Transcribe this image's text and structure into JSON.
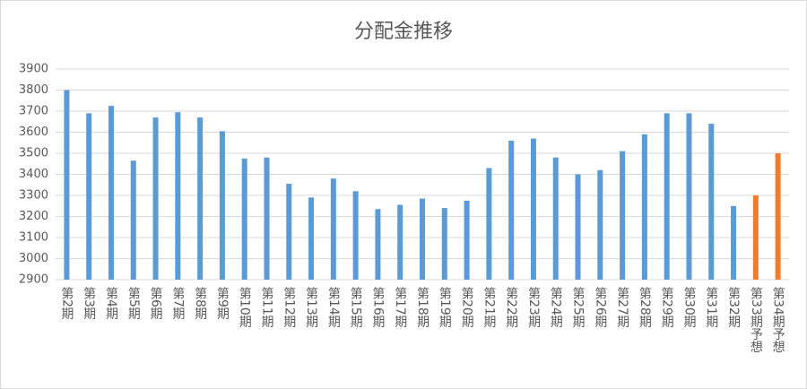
{
  "chart_data": {
    "type": "bar",
    "title": "分配金推移",
    "categories": [
      "第2期",
      "第3期",
      "第4期",
      "第5期",
      "第6期",
      "第7期",
      "第8期",
      "第9期",
      "第10期",
      "第11期",
      "第12期",
      "第13期",
      "第14期",
      "第15期",
      "第16期",
      "第17期",
      "第18期",
      "第19期",
      "第20期",
      "第21期",
      "第22期",
      "第23期",
      "第24期",
      "第25期",
      "第26期",
      "第27期",
      "第28期",
      "第29期",
      "第30期",
      "第31期",
      "第32期",
      "第33期予想",
      "第34期予想"
    ],
    "values": [
      3800,
      3690,
      3725,
      3465,
      3670,
      3695,
      3670,
      3605,
      3475,
      3480,
      3355,
      3290,
      3380,
      3320,
      3235,
      3255,
      3285,
      3240,
      3275,
      3430,
      3560,
      3570,
      3480,
      3400,
      3420,
      3510,
      3590,
      3690,
      3690,
      3640,
      3250,
      3300,
      3500
    ],
    "colors": [
      "#5b9bd5",
      "#5b9bd5",
      "#5b9bd5",
      "#5b9bd5",
      "#5b9bd5",
      "#5b9bd5",
      "#5b9bd5",
      "#5b9bd5",
      "#5b9bd5",
      "#5b9bd5",
      "#5b9bd5",
      "#5b9bd5",
      "#5b9bd5",
      "#5b9bd5",
      "#5b9bd5",
      "#5b9bd5",
      "#5b9bd5",
      "#5b9bd5",
      "#5b9bd5",
      "#5b9bd5",
      "#5b9bd5",
      "#5b9bd5",
      "#5b9bd5",
      "#5b9bd5",
      "#5b9bd5",
      "#5b9bd5",
      "#5b9bd5",
      "#5b9bd5",
      "#5b9bd5",
      "#5b9bd5",
      "#5b9bd5",
      "#ed7d31",
      "#ed7d31"
    ],
    "ylim": [
      2900,
      3900
    ],
    "yticks": [
      2900,
      3000,
      3100,
      3200,
      3300,
      3400,
      3500,
      3600,
      3700,
      3800,
      3900
    ],
    "grid": true
  }
}
